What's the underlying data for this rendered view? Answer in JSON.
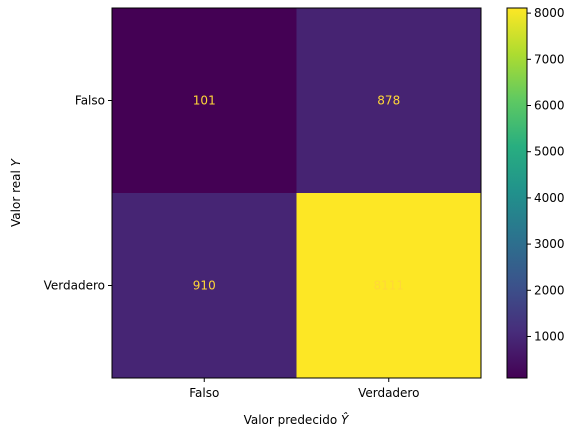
{
  "chart_data": {
    "type": "heatmap",
    "title": "",
    "xlabel": "Valor predecido",
    "xlabel_symbol": "Ŷ",
    "ylabel": "Valor real",
    "ylabel_symbol": "Y",
    "x_categories": [
      "Falso",
      "Verdadero"
    ],
    "y_categories": [
      "Falso",
      "Verdadero"
    ],
    "values": [
      [
        101,
        878
      ],
      [
        910,
        8111
      ]
    ],
    "colormap": "viridis",
    "colorbar": {
      "min": 101,
      "max": 8111,
      "ticks": [
        1000,
        2000,
        3000,
        4000,
        5000,
        6000,
        7000,
        8000
      ]
    },
    "cell_text_color": "#ffd738",
    "grid": false
  }
}
